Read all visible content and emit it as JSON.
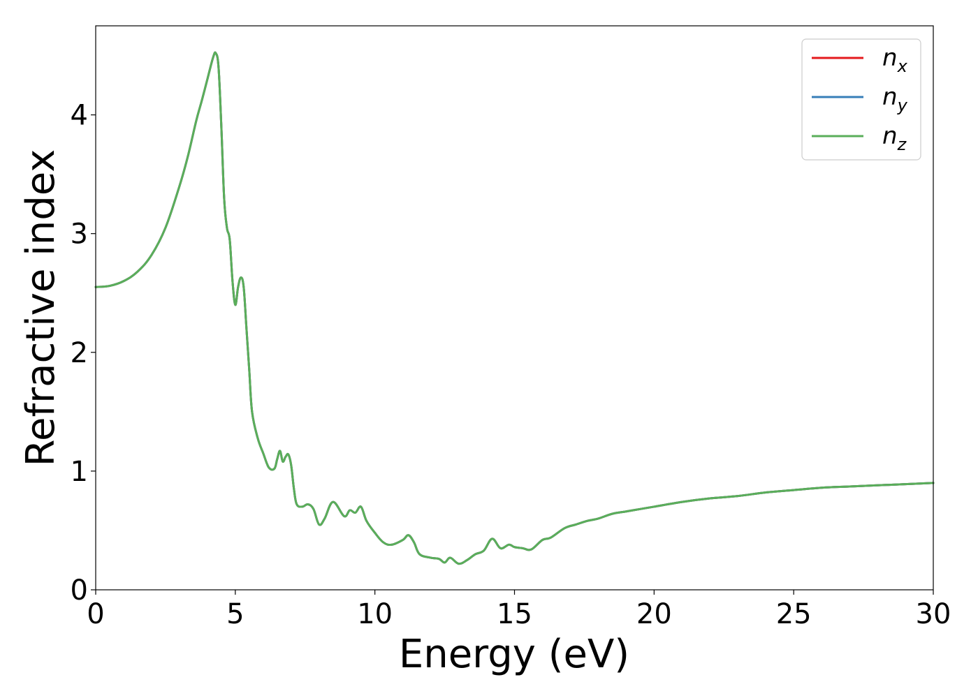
{
  "chart_data": {
    "type": "line",
    "title": "",
    "xlabel": "Energy (eV)",
    "ylabel": "Refractive index",
    "xlim": [
      0,
      30
    ],
    "ylim": [
      0,
      4.75
    ],
    "xticks": [
      0,
      5,
      10,
      15,
      20,
      25,
      30
    ],
    "yticks": [
      0,
      1,
      2,
      3,
      4
    ],
    "grid": false,
    "legend": {
      "placement": "top-right",
      "entries": [
        {
          "base": "n",
          "sub": "x",
          "color": "#e41a1c"
        },
        {
          "base": "n",
          "sub": "y",
          "color": "#377eb8"
        },
        {
          "base": "n",
          "sub": "z",
          "color": "#5aae5a"
        }
      ]
    },
    "x": [
      0,
      0.5,
      1.0,
      1.5,
      2.0,
      2.5,
      3.0,
      3.3,
      3.6,
      3.8,
      4.0,
      4.2,
      4.3,
      4.4,
      4.5,
      4.6,
      4.7,
      4.8,
      4.9,
      5.0,
      5.1,
      5.2,
      5.3,
      5.4,
      5.5,
      5.6,
      5.8,
      6.0,
      6.2,
      6.4,
      6.5,
      6.6,
      6.7,
      6.8,
      6.9,
      7.0,
      7.1,
      7.2,
      7.4,
      7.6,
      7.8,
      8.0,
      8.2,
      8.5,
      8.9,
      9.1,
      9.3,
      9.5,
      9.7,
      10.0,
      10.3,
      10.6,
      11.0,
      11.2,
      11.4,
      11.6,
      12.0,
      12.3,
      12.5,
      12.7,
      13.0,
      13.3,
      13.6,
      13.9,
      14.2,
      14.5,
      14.8,
      15.0,
      15.3,
      15.6,
      16.0,
      16.3,
      16.8,
      17.2,
      17.6,
      18.0,
      18.5,
      19.0,
      19.5,
      20.0,
      21.0,
      22.0,
      23.0,
      24.0,
      25.0,
      26.0,
      27.0,
      28.0,
      29.0,
      30.0
    ],
    "series": [
      {
        "sub": "x",
        "color": "#e41a1c",
        "values": [
          2.55,
          2.56,
          2.6,
          2.68,
          2.82,
          3.05,
          3.4,
          3.65,
          3.95,
          4.12,
          4.3,
          4.48,
          4.52,
          4.4,
          3.9,
          3.3,
          3.05,
          2.95,
          2.6,
          2.4,
          2.55,
          2.63,
          2.55,
          2.2,
          1.85,
          1.5,
          1.28,
          1.15,
          1.03,
          1.02,
          1.1,
          1.17,
          1.08,
          1.12,
          1.14,
          1.05,
          0.85,
          0.72,
          0.7,
          0.72,
          0.68,
          0.55,
          0.6,
          0.74,
          0.62,
          0.67,
          0.65,
          0.7,
          0.58,
          0.48,
          0.4,
          0.38,
          0.42,
          0.46,
          0.4,
          0.3,
          0.27,
          0.26,
          0.23,
          0.27,
          0.22,
          0.25,
          0.3,
          0.33,
          0.43,
          0.35,
          0.38,
          0.36,
          0.35,
          0.34,
          0.42,
          0.44,
          0.52,
          0.55,
          0.58,
          0.6,
          0.64,
          0.66,
          0.68,
          0.7,
          0.74,
          0.77,
          0.79,
          0.82,
          0.84,
          0.86,
          0.87,
          0.88,
          0.89,
          0.9
        ]
      },
      {
        "sub": "y",
        "color": "#377eb8",
        "values": [
          2.55,
          2.56,
          2.6,
          2.68,
          2.82,
          3.05,
          3.4,
          3.65,
          3.95,
          4.12,
          4.3,
          4.48,
          4.52,
          4.4,
          3.9,
          3.3,
          3.05,
          2.95,
          2.6,
          2.4,
          2.55,
          2.63,
          2.55,
          2.2,
          1.85,
          1.5,
          1.28,
          1.15,
          1.03,
          1.02,
          1.1,
          1.17,
          1.08,
          1.12,
          1.14,
          1.05,
          0.85,
          0.72,
          0.7,
          0.72,
          0.68,
          0.55,
          0.6,
          0.74,
          0.62,
          0.67,
          0.65,
          0.7,
          0.58,
          0.48,
          0.4,
          0.38,
          0.42,
          0.46,
          0.4,
          0.3,
          0.27,
          0.26,
          0.23,
          0.27,
          0.22,
          0.25,
          0.3,
          0.33,
          0.43,
          0.35,
          0.38,
          0.36,
          0.35,
          0.34,
          0.42,
          0.44,
          0.52,
          0.55,
          0.58,
          0.6,
          0.64,
          0.66,
          0.68,
          0.7,
          0.74,
          0.77,
          0.79,
          0.82,
          0.84,
          0.86,
          0.87,
          0.88,
          0.89,
          0.9
        ]
      },
      {
        "sub": "z",
        "color": "#5aae5a",
        "values": [
          2.55,
          2.56,
          2.6,
          2.68,
          2.82,
          3.05,
          3.4,
          3.65,
          3.95,
          4.12,
          4.3,
          4.48,
          4.52,
          4.4,
          3.9,
          3.3,
          3.05,
          2.95,
          2.6,
          2.4,
          2.55,
          2.63,
          2.55,
          2.2,
          1.85,
          1.5,
          1.28,
          1.15,
          1.03,
          1.02,
          1.1,
          1.17,
          1.08,
          1.12,
          1.14,
          1.05,
          0.85,
          0.72,
          0.7,
          0.72,
          0.68,
          0.55,
          0.6,
          0.74,
          0.62,
          0.67,
          0.65,
          0.7,
          0.58,
          0.48,
          0.4,
          0.38,
          0.42,
          0.46,
          0.4,
          0.3,
          0.27,
          0.26,
          0.23,
          0.27,
          0.22,
          0.25,
          0.3,
          0.33,
          0.43,
          0.35,
          0.38,
          0.36,
          0.35,
          0.34,
          0.42,
          0.44,
          0.52,
          0.55,
          0.58,
          0.6,
          0.64,
          0.66,
          0.68,
          0.7,
          0.74,
          0.77,
          0.79,
          0.82,
          0.84,
          0.86,
          0.87,
          0.88,
          0.89,
          0.9
        ]
      }
    ]
  }
}
